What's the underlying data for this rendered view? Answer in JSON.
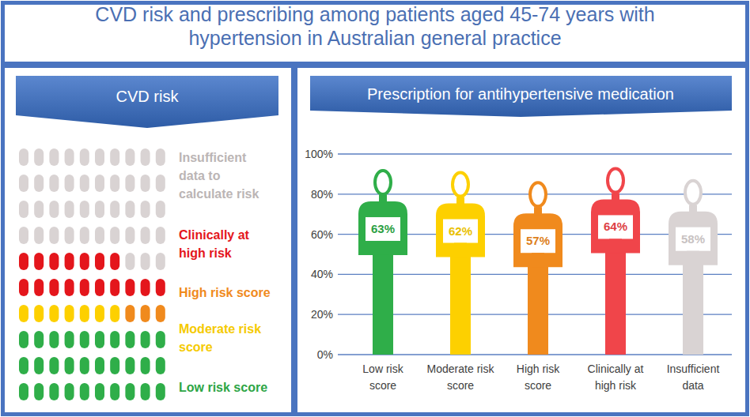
{
  "title": "CVD risk and prescribing among patients aged 45-74 years with hypertension in Australian general practice",
  "chart_data": [
    {
      "type": "waffle",
      "title": "CVD risk",
      "categories": [
        "Insufficient data to calculate risk",
        "Clinically at high risk",
        "High risk score",
        "Moderate risk score",
        "Low risk score"
      ],
      "values": [
        43,
        17,
        3,
        7,
        30
      ],
      "colors": [
        "#d9d3d3",
        "#e4161c",
        "#f08a1d",
        "#fdd000",
        "#2fae49"
      ]
    },
    {
      "type": "bar",
      "title": "Prescription for antihypertensive medication",
      "categories": [
        "Low risk score",
        "Moderate risk score",
        "High risk score",
        "Clinically at high risk",
        "Insufficient data"
      ],
      "values": [
        63,
        62,
        57,
        64,
        58
      ],
      "value_labels": [
        "63%",
        "62%",
        "57%",
        "64%",
        "58%"
      ],
      "colors": [
        "#2fae49",
        "#fdd000",
        "#f08a1d",
        "#f0454a",
        "#d9d3d3"
      ],
      "ylim": [
        0,
        100
      ],
      "yticks": [
        {
          "value": 0,
          "label": "0%"
        },
        {
          "value": 20,
          "label": "20%"
        },
        {
          "value": 40,
          "label": "40%"
        },
        {
          "value": 60,
          "label": "60%"
        },
        {
          "value": 80,
          "label": "80%"
        },
        {
          "value": 100,
          "label": "100%"
        }
      ],
      "grid": true,
      "data_labels": true
    }
  ]
}
